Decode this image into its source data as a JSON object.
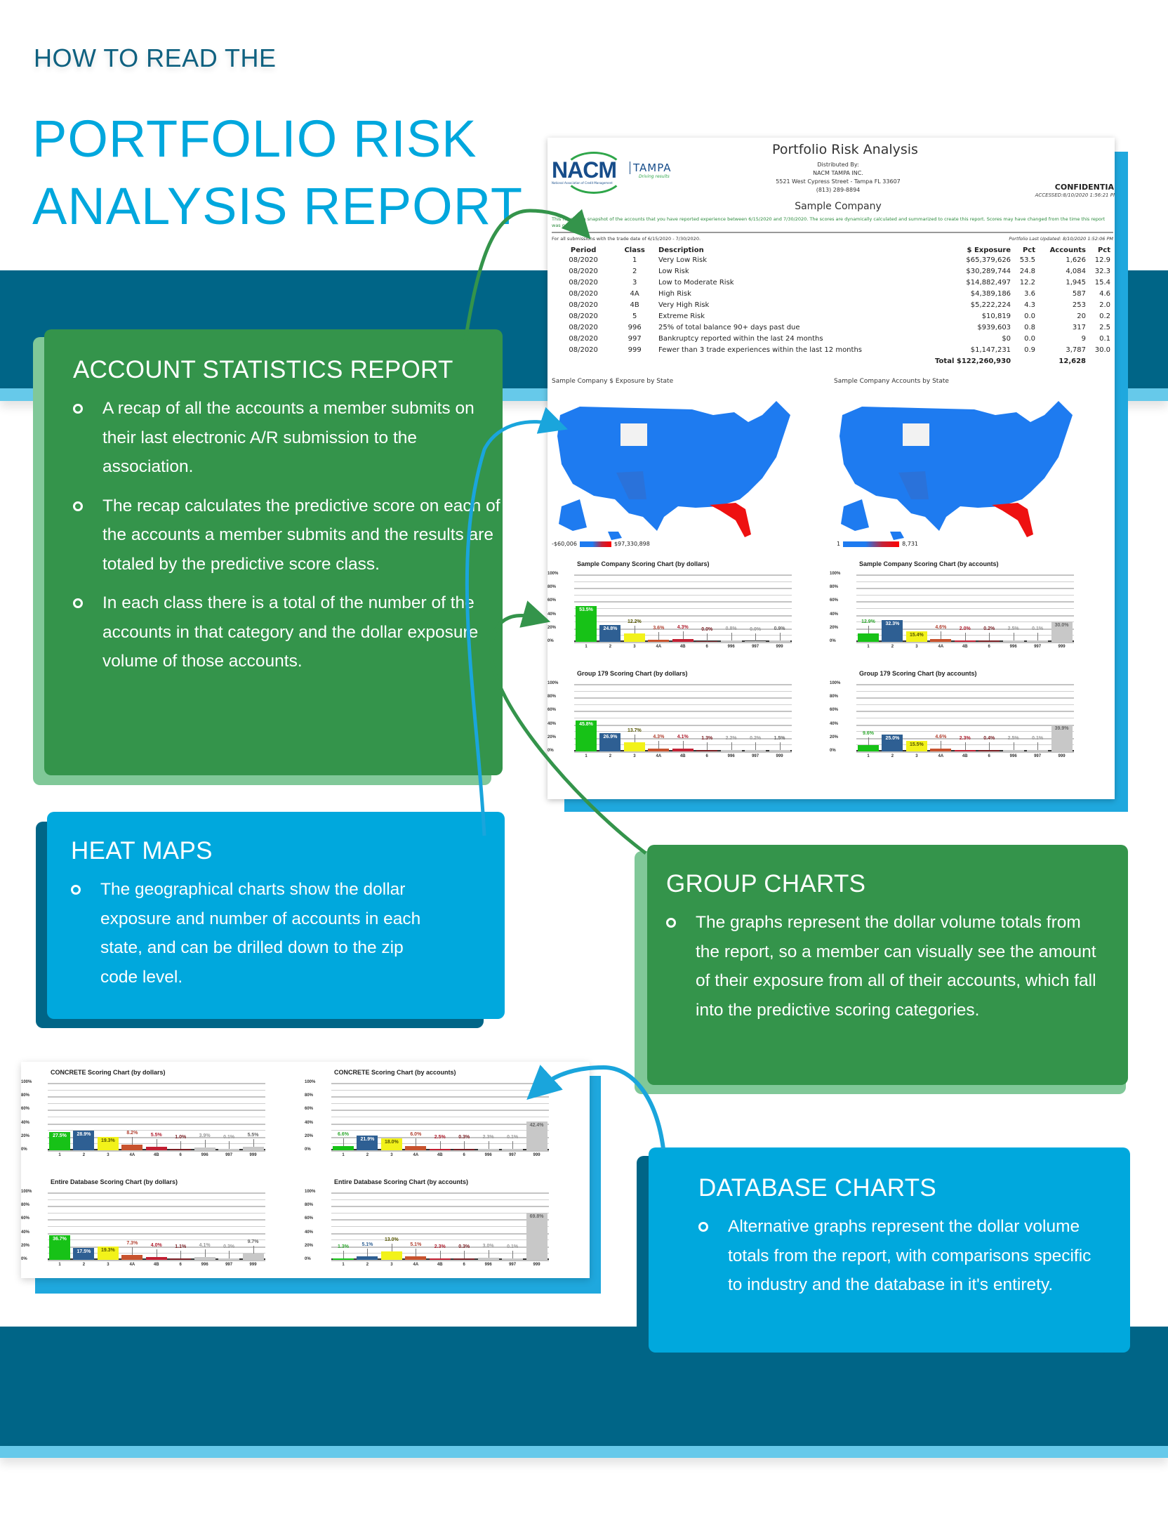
{
  "header": {
    "kicker": "HOW TO READ THE",
    "title_line1": "PORTFOLIO RISK",
    "title_line2": "ANALYSIS REPORT"
  },
  "colors": {
    "title_blue": "#00a7dd",
    "kicker_teal": "#0f6180",
    "band_dark": "#006587",
    "band_light": "#66c9ea",
    "box_green": "#34944b",
    "box_green_shadow": "#80c898",
    "box_blue": "#00a8dd",
    "box_blue_shadow": "#006587"
  },
  "report": {
    "logo": {
      "brand": "NACM",
      "city": "TAMPA",
      "tagline": "Driving results",
      "subtitle": "National Association of Credit Management"
    },
    "title": "Portfolio Risk Analysis",
    "distributed_by_label": "Distributed By:",
    "distributor": "NACM TAMPA INC.",
    "address": "5521 West Cypress Street - Tampa FL 33607",
    "phone": "(813) 289-8894",
    "company": "Sample Company",
    "confidential": "CONFIDENTIAL",
    "accessed": "ACCESSED:8/10/2020 1:56:21 PM",
    "snapshot_note": "This report is a snapshot of the accounts that you have reported experience between 6/15/2020 and 7/30/2020. The scores are dynamically calculated and summarized to create this report. Scores may have changed from the time this report was generated.",
    "for_all": "For all submissions with the trade date of 6/15/2020 - 7/30/2020.",
    "last_updated": "Portfolio Last Updated: 8/10/2020 1:52:06 PM",
    "table": {
      "headers": [
        "Period",
        "Class",
        "Description",
        "$ Exposure",
        "Pct",
        "Accounts",
        "Pct"
      ],
      "rows": [
        [
          "08/2020",
          "1",
          "Very Low Risk",
          "$65,379,626",
          "53.5",
          "1,626",
          "12.9"
        ],
        [
          "08/2020",
          "2",
          "Low Risk",
          "$30,289,744",
          "24.8",
          "4,084",
          "32.3"
        ],
        [
          "08/2020",
          "3",
          "Low to Moderate Risk",
          "$14,882,497",
          "12.2",
          "1,945",
          "15.4"
        ],
        [
          "08/2020",
          "4A",
          "High Risk",
          "$4,389,186",
          "3.6",
          "587",
          "4.6"
        ],
        [
          "08/2020",
          "4B",
          "Very High Risk",
          "$5,222,224",
          "4.3",
          "253",
          "2.0"
        ],
        [
          "08/2020",
          "5",
          "Extreme Risk",
          "$10,819",
          "0.0",
          "20",
          "0.2"
        ],
        [
          "08/2020",
          "996",
          "25% of total balance 90+ days past due",
          "$939,603",
          "0.8",
          "317",
          "2.5"
        ],
        [
          "08/2020",
          "997",
          "Bankruptcy reported within the last 24 months",
          "$0",
          "0.0",
          "9",
          "0.1"
        ],
        [
          "08/2020",
          "999",
          "Fewer than 3 trade experiences within the last 12 months",
          "$1,147,231",
          "0.9",
          "3,787",
          "30.0"
        ]
      ],
      "total_label": "Total",
      "total_exposure": "$122,260,930",
      "total_accounts": "12,628"
    },
    "maps": [
      {
        "title": "Sample Company $ Exposure by State",
        "legend_min": "-$60,006",
        "legend_max": "$97,330,898"
      },
      {
        "title": "Sample Company Accounts by State",
        "legend_min": "1",
        "legend_max": "8,731"
      }
    ]
  },
  "boxes": {
    "account_stats": {
      "title": "ACCOUNT STATISTICS REPORT",
      "bullets": [
        "A recap of all the accounts a member submits on their last electronic A/R submission to the association.",
        "The recap calculates the predictive score on each of the accounts a member submits and the results are totaled by the predictive score class.",
        "In each class there is a total of the number of the accounts in that category and the dollar exposure volume of those accounts."
      ]
    },
    "heat_maps": {
      "title": "HEAT MAPS",
      "bullets": [
        "The geographical charts show the dollar exposure and number of accounts in each state, and can be drilled down to the zip code level."
      ]
    },
    "group_charts": {
      "title": "GROUP CHARTS",
      "bullets": [
        "The graphs represent the dollar volume totals from the report, so a member can visually see the amount of their exposure from all of their accounts, which fall into the predictive scoring categories."
      ]
    },
    "database_charts": {
      "title": "DATABASE CHARTS",
      "bullets": [
        "Alternative graphs represent the dollar volume totals from the report, with comparisons specific to industry and the database in it's entirety."
      ]
    }
  },
  "chart_data": [
    {
      "type": "bar",
      "title": "Sample Company Scoring Chart (by dollars)",
      "categories": [
        "1",
        "2",
        "3",
        "4A",
        "4B",
        "6",
        "996",
        "997",
        "999"
      ],
      "values": [
        53.5,
        24.8,
        12.2,
        3.6,
        4.3,
        0.0,
        0.8,
        0.0,
        0.9
      ],
      "labels": [
        "53.5%",
        "24.8%",
        "12.2%",
        "3.6%",
        "4.3%",
        "0.0%",
        "0.8%",
        "0.0%",
        "0.9%"
      ],
      "ylim": [
        0,
        100
      ],
      "yticks": [
        "0%",
        "20%",
        "40%",
        "60%",
        "80%",
        "100%"
      ],
      "grid": true
    },
    {
      "type": "bar",
      "title": "Sample Company Scoring Chart (by accounts)",
      "categories": [
        "1",
        "2",
        "3",
        "4A",
        "4B",
        "6",
        "996",
        "997",
        "999"
      ],
      "values": [
        12.9,
        32.3,
        15.4,
        4.6,
        2.0,
        0.2,
        2.5,
        0.1,
        30.0
      ],
      "labels": [
        "12.9%",
        "32.3%",
        "15.4%",
        "4.6%",
        "2.0%",
        "0.2%",
        "2.5%",
        "0.1%",
        "30.0%"
      ],
      "ylim": [
        0,
        100
      ],
      "yticks": [
        "0%",
        "20%",
        "40%",
        "60%",
        "80%",
        "100%"
      ],
      "grid": true
    },
    {
      "type": "bar",
      "title": "Group 179 Scoring Chart (by dollars)",
      "categories": [
        "1",
        "2",
        "3",
        "4A",
        "4B",
        "6",
        "996",
        "997",
        "999"
      ],
      "values": [
        45.8,
        26.9,
        13.7,
        4.3,
        4.1,
        1.3,
        2.2,
        0.2,
        1.5
      ],
      "labels": [
        "45.8%",
        "26.9%",
        "13.7%",
        "4.3%",
        "4.1%",
        "1.3%",
        "2.2%",
        "0.2%",
        "1.5%"
      ],
      "ylim": [
        0,
        100
      ],
      "yticks": [
        "0%",
        "20%",
        "40%",
        "60%",
        "80%",
        "100%"
      ],
      "grid": true
    },
    {
      "type": "bar",
      "title": "Group 179 Scoring Chart (by accounts)",
      "categories": [
        "1",
        "2",
        "3",
        "4A",
        "4B",
        "6",
        "996",
        "997",
        "999"
      ],
      "values": [
        9.6,
        25.0,
        15.5,
        4.6,
        2.3,
        0.4,
        2.5,
        0.1,
        39.9
      ],
      "labels": [
        "9.6%",
        "25.0%",
        "15.5%",
        "4.6%",
        "2.3%",
        "0.4%",
        "2.5%",
        "0.1%",
        "39.9%"
      ],
      "ylim": [
        0,
        100
      ],
      "yticks": [
        "0%",
        "20%",
        "40%",
        "60%",
        "80%",
        "100%"
      ],
      "grid": true
    },
    {
      "type": "bar",
      "title": "CONCRETE Scoring Chart (by dollars)",
      "categories": [
        "1",
        "2",
        "3",
        "4A",
        "4B",
        "6",
        "996",
        "997",
        "999"
      ],
      "values": [
        27.5,
        28.9,
        19.3,
        8.2,
        5.5,
        1.0,
        3.9,
        0.1,
        5.5
      ],
      "labels": [
        "27.5%",
        "28.9%",
        "19.3%",
        "8.2%",
        "5.5%",
        "1.0%",
        "3.9%",
        "0.1%",
        "5.5%"
      ],
      "ylim": [
        0,
        100
      ],
      "yticks": [
        "0%",
        "20%",
        "40%",
        "60%",
        "80%",
        "100%"
      ],
      "grid": true
    },
    {
      "type": "bar",
      "title": "CONCRETE Scoring Chart (by accounts)",
      "categories": [
        "1",
        "2",
        "3",
        "4A",
        "4B",
        "6",
        "996",
        "997",
        "999"
      ],
      "values": [
        6.6,
        21.9,
        18.0,
        6.0,
        2.5,
        0.3,
        2.3,
        0.1,
        42.4
      ],
      "labels": [
        "6.6%",
        "21.9%",
        "18.0%",
        "6.0%",
        "2.5%",
        "0.3%",
        "2.3%",
        "0.1%",
        "42.4%"
      ],
      "ylim": [
        0,
        100
      ],
      "yticks": [
        "0%",
        "20%",
        "40%",
        "60%",
        "80%",
        "100%"
      ],
      "grid": true
    },
    {
      "type": "bar",
      "title": "Entire Database Scoring Chart (by dollars)",
      "categories": [
        "1",
        "2",
        "3",
        "4A",
        "4B",
        "6",
        "996",
        "997",
        "999"
      ],
      "values": [
        36.7,
        17.5,
        19.3,
        7.3,
        4.0,
        1.1,
        4.1,
        0.3,
        9.7
      ],
      "labels": [
        "36.7%",
        "17.5%",
        "19.3%",
        "7.3%",
        "4.0%",
        "1.1%",
        "4.1%",
        "0.3%",
        "9.7%"
      ],
      "ylim": [
        0,
        100
      ],
      "yticks": [
        "0%",
        "20%",
        "40%",
        "60%",
        "80%",
        "100%"
      ],
      "grid": true
    },
    {
      "type": "bar",
      "title": "Entire Database Scoring Chart (by accounts)",
      "categories": [
        "1",
        "2",
        "3",
        "4A",
        "4B",
        "6",
        "996",
        "997",
        "999"
      ],
      "values": [
        1.3,
        5.1,
        13.0,
        5.1,
        2.3,
        0.3,
        3.0,
        0.1,
        69.8
      ],
      "labels": [
        "1.3%",
        "5.1%",
        "13.0%",
        "5.1%",
        "2.3%",
        "0.3%",
        "3.0%",
        "0.1%",
        "69.8%"
      ],
      "ylim": [
        0,
        100
      ],
      "yticks": [
        "0%",
        "20%",
        "40%",
        "60%",
        "80%",
        "100%"
      ],
      "grid": true
    }
  ],
  "bar_colors": [
    "#17c217",
    "#2e5f93",
    "#f2f21a",
    "#c8532e",
    "#c22033",
    "#7a1f24",
    "#c8c8c8",
    "#c8c8c8",
    "#c8c8c8"
  ],
  "label_colors": [
    "#2ea82e",
    "#2e5f93",
    "#555500",
    "#b04030",
    "#b02030",
    "#7a1f24",
    "#999999",
    "#999999",
    "#666666"
  ]
}
